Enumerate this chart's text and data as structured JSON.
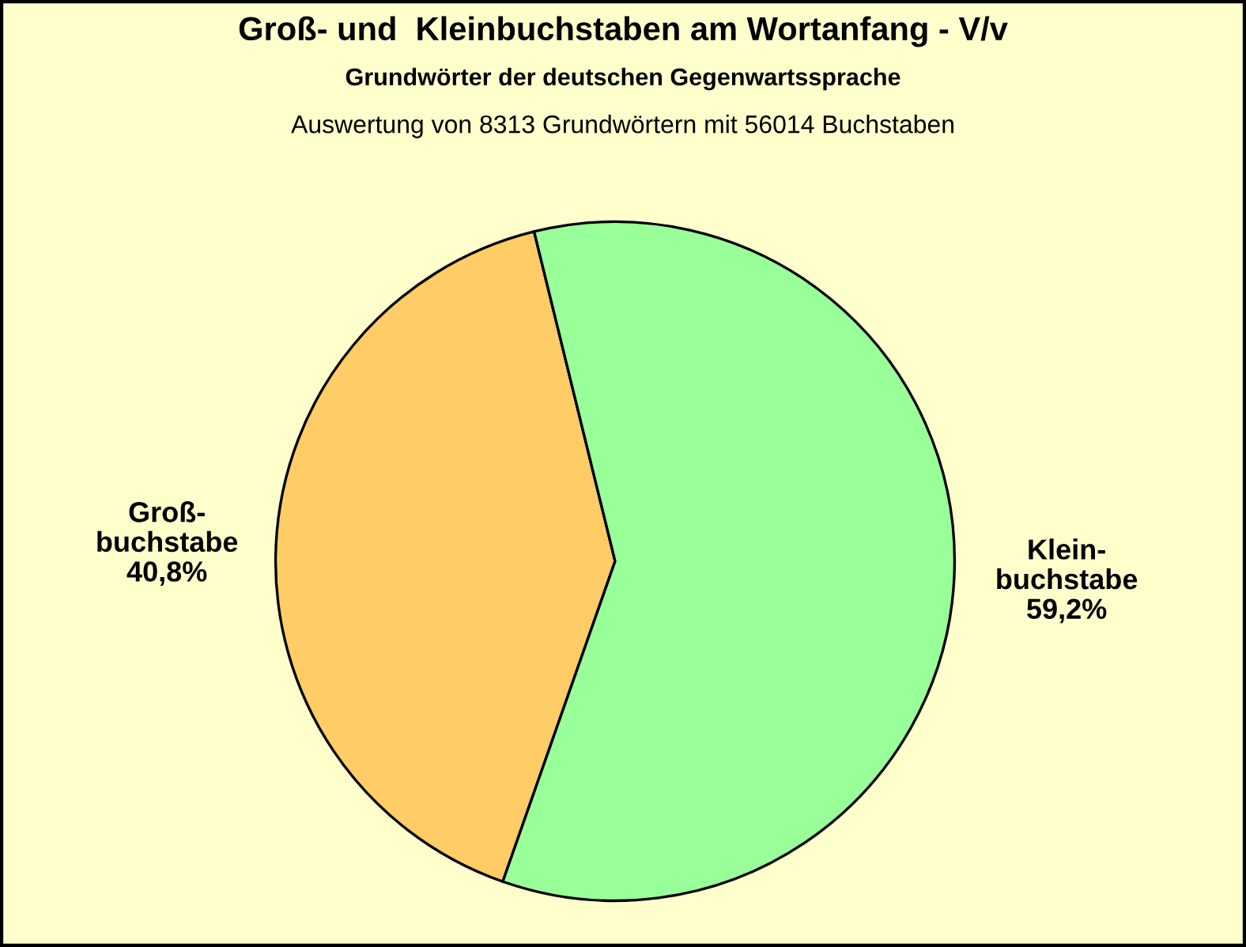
{
  "chart_data": {
    "type": "pie",
    "title": "Groß- und  Kleinbuchstaben am Wortanfang - V/v",
    "subtitle": "Grundwörter der deutschen Gegenwartssprache",
    "annotations": [
      "Auswertung von 8313 Grundwörtern mit 56014 Buchstaben"
    ],
    "categories": [
      "Groß-\nbuchstabe",
      "Klein-\nbuchstabe"
    ],
    "values": [
      40.8,
      59.2
    ],
    "value_labels": [
      "40,8%",
      "59,2%"
    ],
    "colors": [
      "#ffcc66",
      "#99ff99"
    ],
    "legend": false
  }
}
